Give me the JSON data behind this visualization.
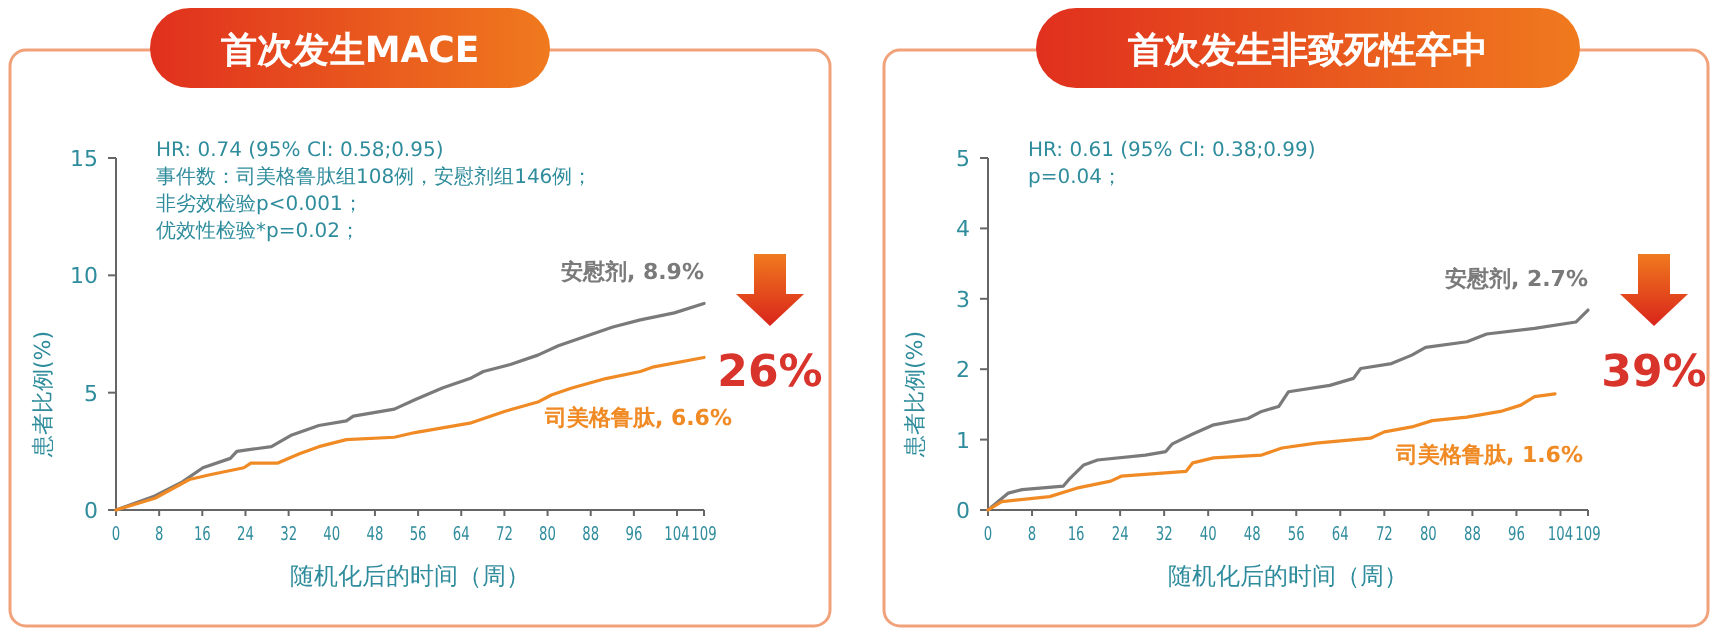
{
  "chart_data": [
    {
      "type": "line",
      "title": "首次发生MACE",
      "xlabel": "随机化后的时间（周）",
      "ylabel": "患者比例(%)",
      "xlim": [
        0,
        109
      ],
      "xticks": [
        0,
        8,
        16,
        24,
        32,
        40,
        48,
        56,
        64,
        72,
        80,
        88,
        96,
        104,
        109
      ],
      "ylim": [
        0,
        15
      ],
      "yticks": [
        0,
        5,
        10,
        15
      ],
      "grid": false,
      "legend": false,
      "marker": "none",
      "line_style": "solid",
      "annotations": [
        "HR: 0.74 (95% CI: 0.58;0.95)",
        "事件数：司美格鲁肽组108例，安慰剂组146例；",
        "非劣效检验p<0.001；",
        "优效性检验*p=0.02；",
        "26%"
      ],
      "series": [
        {
          "name": "安慰剂, 8.9%",
          "color": "#7a7a7a",
          "x": [
            0,
            7.2,
            12.3,
            16.1,
            21.2,
            22.4,
            28.8,
            32.6,
            37.6,
            42.7,
            44,
            51.6,
            55.4,
            60.5,
            65.6,
            68.1,
            73.1,
            78.2,
            82,
            87.1,
            92.1,
            97.2,
            103.5,
            109
          ],
          "values": [
            0,
            0.6,
            1.2,
            1.8,
            2.2,
            2.5,
            2.7,
            3.2,
            3.6,
            3.8,
            4.0,
            4.3,
            4.7,
            5.2,
            5.6,
            5.9,
            6.2,
            6.6,
            7.0,
            7.4,
            7.8,
            8.1,
            8.4,
            8.8
          ]
        },
        {
          "name": "司美格鲁肽, 6.6%",
          "color": "#f08a24",
          "x": [
            0,
            7.2,
            13.6,
            17.4,
            23.7,
            25,
            30,
            34,
            37.6,
            42.7,
            51.6,
            55.4,
            65.6,
            72,
            78.2,
            80.7,
            84.5,
            90.8,
            97.2,
            99.7,
            109
          ],
          "values": [
            0,
            0.5,
            1.3,
            1.5,
            1.8,
            2.0,
            2.0,
            2.4,
            2.7,
            3.0,
            3.1,
            3.3,
            3.7,
            4.2,
            4.6,
            4.9,
            5.2,
            5.6,
            5.9,
            6.1,
            6.5
          ]
        }
      ]
    },
    {
      "type": "line",
      "title": "首次发生非致死性卒中",
      "xlabel": "随机化后的时间（周）",
      "ylabel": "患者比例(%)",
      "xlim": [
        0,
        109
      ],
      "xticks": [
        0,
        8,
        16,
        24,
        32,
        40,
        48,
        56,
        64,
        72,
        80,
        88,
        96,
        104,
        109
      ],
      "ylim": [
        0,
        5
      ],
      "yticks": [
        0,
        1,
        2,
        3,
        4,
        5
      ],
      "grid": false,
      "legend": false,
      "marker": "none",
      "line_style": "solid",
      "annotations": [
        "HR: 0.61 (95% CI: 0.38;0.99)",
        "p=0.04；",
        "39%"
      ],
      "series": [
        {
          "name": "安慰剂, 2.7%",
          "color": "#7a7a7a",
          "x": [
            0,
            3.7,
            6.2,
            13.7,
            14.9,
            17.4,
            19.9,
            28.6,
            32.3,
            33.5,
            37.2,
            41,
            47.2,
            49.7,
            52.8,
            54.6,
            62.1,
            66.4,
            67.7,
            73.3,
            77,
            79.5,
            87,
            90.6,
            99.3,
            106.8,
            109
          ],
          "values": [
            0,
            0.24,
            0.29,
            0.34,
            0.45,
            0.64,
            0.71,
            0.78,
            0.83,
            0.94,
            1.08,
            1.21,
            1.3,
            1.4,
            1.47,
            1.68,
            1.77,
            1.87,
            2.01,
            2.08,
            2.2,
            2.31,
            2.39,
            2.5,
            2.58,
            2.67,
            2.84
          ]
        },
        {
          "name": "司美格鲁肽, 1.6%",
          "color": "#f08a24",
          "x": [
            0,
            2.5,
            11.2,
            16.1,
            22.3,
            24.2,
            31,
            36,
            37.2,
            41,
            49.7,
            53.4,
            59.6,
            69.5,
            72,
            77,
            80.7,
            87,
            93.1,
            96.8,
            99.3,
            103
          ],
          "values": [
            0,
            0.12,
            0.19,
            0.31,
            0.41,
            0.48,
            0.52,
            0.55,
            0.67,
            0.74,
            0.78,
            0.88,
            0.95,
            1.02,
            1.11,
            1.18,
            1.27,
            1.32,
            1.4,
            1.49,
            1.61,
            1.65
          ]
        }
      ]
    }
  ]
}
